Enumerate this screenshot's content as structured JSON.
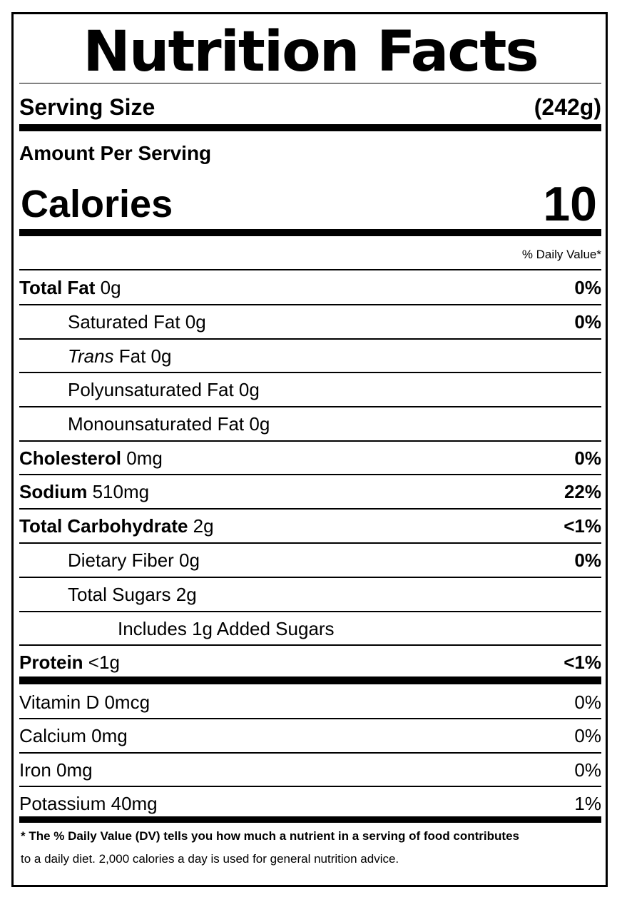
{
  "title": "Nutrition Facts",
  "serving": {
    "label": "Serving Size",
    "value": "(242g)"
  },
  "amount_per_serving": "Amount Per Serving",
  "calories": {
    "label": "Calories",
    "value": "10"
  },
  "dv_header": "% Daily Value*",
  "nutrients": {
    "total_fat": {
      "name": "Total Fat",
      "amount": " 0g",
      "dv": "0%"
    },
    "saturated_fat": {
      "name": "Saturated Fat 0g",
      "dv": "0%"
    },
    "trans_fat": {
      "name_italic": "Trans",
      "amount": " Fat 0g"
    },
    "polyunsaturated_fat": {
      "name": "Polyunsaturated Fat 0g"
    },
    "monounsaturated_fat": {
      "name": "Monounsaturated Fat 0g"
    },
    "cholesterol": {
      "name": "Cholesterol",
      "amount": " 0mg",
      "dv": "0%"
    },
    "sodium": {
      "name": "Sodium",
      "amount": " 510mg",
      "dv": "22%"
    },
    "total_carbohydrate": {
      "name": "Total Carbohydrate",
      "amount": " 2g",
      "dv": "<1%"
    },
    "dietary_fiber": {
      "name": "Dietary Fiber 0g",
      "dv": "0%"
    },
    "total_sugars": {
      "name": "Total Sugars 2g"
    },
    "added_sugars": {
      "name": "Includes 1g Added Sugars"
    },
    "protein": {
      "name": "Protein",
      "amount": " <1g",
      "dv": "<1%"
    }
  },
  "vitamins": [
    {
      "name": "Vitamin D 0mcg",
      "dv": "0%"
    },
    {
      "name": "Calcium 0mg",
      "dv": "0%"
    },
    {
      "name": "Iron 0mg",
      "dv": "0%"
    },
    {
      "name": "Potassium 40mg",
      "dv": "1%"
    }
  ],
  "footnote": {
    "bold": "* The % Daily Value (DV) tells you how much a nutrient in a serving of food contributes",
    "normal": "to a daily diet. 2,000 calories a day is used for general nutrition advice."
  }
}
